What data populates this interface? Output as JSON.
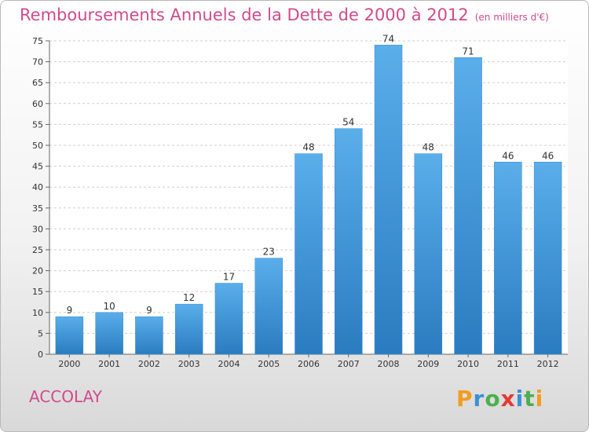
{
  "chart_data": {
    "type": "bar",
    "title": "Remboursements Annuels de la Dette de 2000 à 2012",
    "subtitle": "(en milliers d'€)",
    "categories": [
      "2000",
      "2001",
      "2002",
      "2003",
      "2004",
      "2005",
      "2006",
      "2007",
      "2008",
      "2009",
      "2010",
      "2011",
      "2012"
    ],
    "values": [
      9,
      10,
      9,
      12,
      17,
      23,
      48,
      54,
      74,
      48,
      71,
      46,
      46
    ],
    "ylim": [
      0,
      75
    ],
    "yticks": [
      0,
      5,
      10,
      15,
      20,
      25,
      30,
      35,
      40,
      45,
      50,
      55,
      60,
      65,
      70,
      75
    ],
    "grid": true,
    "bar_color": "#4a9fe0"
  },
  "commune": "ACCOLAY",
  "logo": {
    "letters": [
      "P",
      "r",
      "o",
      "x",
      "i",
      "t",
      "i"
    ],
    "colors": [
      "#f39c1f",
      "#3a8fd8",
      "#4caf50",
      "#e53935",
      "#3a8fd8",
      "#4caf50",
      "#f39c1f"
    ]
  },
  "colors": {
    "title": "#d24a8c"
  }
}
